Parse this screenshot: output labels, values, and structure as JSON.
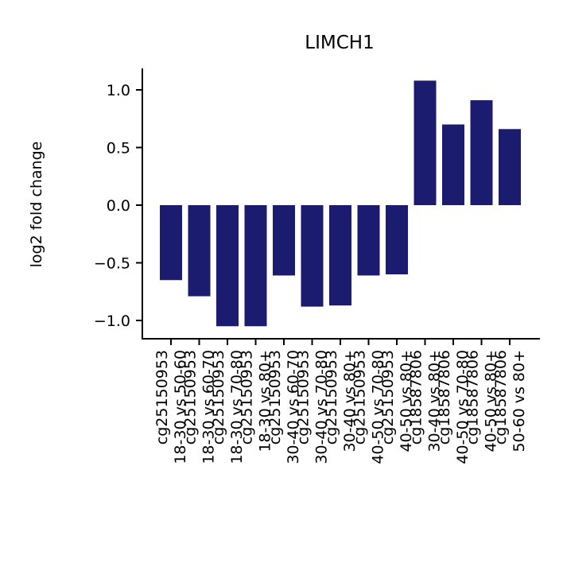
{
  "chart_data": {
    "type": "bar",
    "title": "LIMCH1",
    "ylabel": "log2 fold change",
    "xlabel": "",
    "ylim": [
      -1.17,
      1.19
    ],
    "yticks": [
      1.0,
      0.5,
      0.0,
      -0.5,
      -1.0
    ],
    "ytick_labels": [
      "1.0",
      "0.5",
      "0.0",
      "−0.5",
      "−1.0"
    ],
    "bar_color": "#1b1b6f",
    "categories": [
      [
        "cg25150953",
        "18-30 vs 50-60"
      ],
      [
        "cg25150953",
        "18-30 vs 60-70"
      ],
      [
        "cg25150953",
        "18-30 vs 70-80"
      ],
      [
        "cg25150953",
        "18-30 vs 80+"
      ],
      [
        "cg25150953",
        "30-40 vs 60-70"
      ],
      [
        "cg25150953",
        "30-40 vs 70-80"
      ],
      [
        "cg25150953",
        "30-40 vs 80+"
      ],
      [
        "cg25150953",
        "40-50 vs 70-80"
      ],
      [
        "cg25150953",
        "40-50 vs 80+"
      ],
      [
        "cg18587806",
        "30-40 vs 80+"
      ],
      [
        "cg18587806",
        "40-50 vs 70-80"
      ],
      [
        "cg18587806",
        "40-50 vs 80+"
      ],
      [
        "cg18587806",
        "50-60 vs 80+"
      ]
    ],
    "values": [
      -0.65,
      -0.79,
      -1.05,
      -1.05,
      -0.61,
      -0.88,
      -0.87,
      -0.61,
      -0.6,
      1.08,
      0.7,
      0.91,
      0.66
    ],
    "grid": false,
    "legend": "none"
  }
}
